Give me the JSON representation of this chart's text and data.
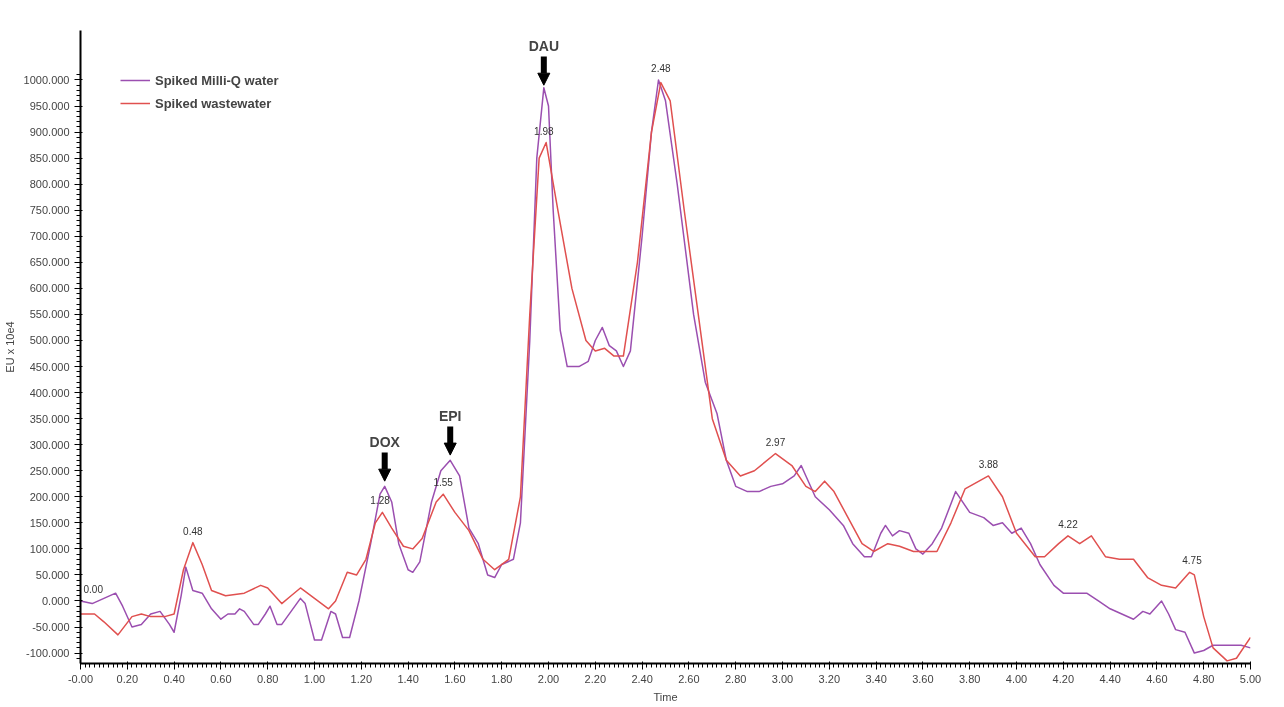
{
  "chart_data": {
    "type": "line",
    "xlabel": "Time",
    "ylabel": "EU x 10e4",
    "xlim": [
      0,
      5
    ],
    "ylim": [
      -120,
      1095
    ],
    "xticks": [
      {
        "value": 0,
        "label": "-0.00"
      },
      {
        "value": 0.2,
        "label": "0.20"
      },
      {
        "value": 0.4,
        "label": "0.40"
      },
      {
        "value": 0.6,
        "label": "0.60"
      },
      {
        "value": 0.8,
        "label": "0.80"
      },
      {
        "value": 1,
        "label": "1.00"
      },
      {
        "value": 1.2,
        "label": "1.20"
      },
      {
        "value": 1.4,
        "label": "1.40"
      },
      {
        "value": 1.6,
        "label": "1.60"
      },
      {
        "value": 1.8,
        "label": "1.80"
      },
      {
        "value": 2,
        "label": "2.00"
      },
      {
        "value": 2.2,
        "label": "2.20"
      },
      {
        "value": 2.4,
        "label": "2.40"
      },
      {
        "value": 2.6,
        "label": "2.60"
      },
      {
        "value": 2.8,
        "label": "2.80"
      },
      {
        "value": 3,
        "label": "3.00"
      },
      {
        "value": 3.2,
        "label": "3.20"
      },
      {
        "value": 3.4,
        "label": "3.40"
      },
      {
        "value": 3.6,
        "label": "3.60"
      },
      {
        "value": 3.8,
        "label": "3.80"
      },
      {
        "value": 4,
        "label": "4.00"
      },
      {
        "value": 4.2,
        "label": "4.20"
      },
      {
        "value": 4.4,
        "label": "4.40"
      },
      {
        "value": 4.6,
        "label": "4.60"
      },
      {
        "value": 4.8,
        "label": "4.80"
      },
      {
        "value": 5,
        "label": "5.00"
      }
    ],
    "yticks": [
      {
        "value": -100,
        "label": "-100.000"
      },
      {
        "value": -50,
        "label": "-50.000"
      },
      {
        "value": 0,
        "label": "0.000"
      },
      {
        "value": 50,
        "label": "50.000"
      },
      {
        "value": 100,
        "label": "100.000"
      },
      {
        "value": 150,
        "label": "150.000"
      },
      {
        "value": 200,
        "label": "200.000"
      },
      {
        "value": 250,
        "label": "250.000"
      },
      {
        "value": 300,
        "label": "300.000"
      },
      {
        "value": 350,
        "label": "350.000"
      },
      {
        "value": 400,
        "label": "400.000"
      },
      {
        "value": 450,
        "label": "450.000"
      },
      {
        "value": 500,
        "label": "500.000"
      },
      {
        "value": 550,
        "label": "550.000"
      },
      {
        "value": 600,
        "label": "600.000"
      },
      {
        "value": 650,
        "label": "650.000"
      },
      {
        "value": 700,
        "label": "700.000"
      },
      {
        "value": 750,
        "label": "750.000"
      },
      {
        "value": 800,
        "label": "800.000"
      },
      {
        "value": 850,
        "label": "850.000"
      },
      {
        "value": 900,
        "label": "900.000"
      },
      {
        "value": 950,
        "label": "950.000"
      },
      {
        "value": 1000,
        "label": "1000.000"
      }
    ],
    "legend": "top left",
    "grid": false,
    "line_style": "solid",
    "series": [
      {
        "name": "Spiked Milli-Q water",
        "color": "#9b4fb0",
        "x": [
          0,
          0.05,
          0.1,
          0.15,
          0.18,
          0.22,
          0.26,
          0.3,
          0.34,
          0.38,
          0.4,
          0.43,
          0.45,
          0.48,
          0.52,
          0.56,
          0.6,
          0.63,
          0.66,
          0.68,
          0.7,
          0.74,
          0.76,
          0.79,
          0.81,
          0.84,
          0.86,
          0.9,
          0.94,
          0.96,
          0.98,
          1.0,
          1.03,
          1.07,
          1.09,
          1.12,
          1.15,
          1.19,
          1.24,
          1.28,
          1.3,
          1.33,
          1.36,
          1.4,
          1.42,
          1.45,
          1.5,
          1.54,
          1.58,
          1.62,
          1.66,
          1.7,
          1.74,
          1.77,
          1.8,
          1.85,
          1.88,
          1.92,
          1.95,
          1.98,
          2.0,
          2.02,
          2.05,
          2.08,
          2.13,
          2.17,
          2.2,
          2.23,
          2.26,
          2.29,
          2.32,
          2.35,
          2.4,
          2.44,
          2.47,
          2.5,
          2.55,
          2.62,
          2.67,
          2.72,
          2.76,
          2.8,
          2.85,
          2.9,
          2.95,
          3.0,
          3.05,
          3.08,
          3.1,
          3.14,
          3.2,
          3.26,
          3.3,
          3.35,
          3.38,
          3.42,
          3.44,
          3.47,
          3.5,
          3.54,
          3.57,
          3.6,
          3.64,
          3.68,
          3.74,
          3.8,
          3.86,
          3.9,
          3.94,
          3.98,
          4.02,
          4.06,
          4.1,
          4.16,
          4.2,
          4.3,
          4.35,
          4.4,
          4.45,
          4.5,
          4.54,
          4.57,
          4.62,
          4.65,
          4.68,
          4.72,
          4.76,
          4.8,
          4.84,
          4.96,
          5.0
        ],
        "values": [
          0,
          -5,
          5,
          15,
          -10,
          -50,
          -45,
          -25,
          -20,
          -45,
          -60,
          10,
          65,
          20,
          15,
          -15,
          -35,
          -25,
          -25,
          -15,
          -20,
          -45,
          -45,
          -25,
          -10,
          -45,
          -45,
          -20,
          5,
          -5,
          -40,
          -75,
          -75,
          -20,
          -25,
          -70,
          -70,
          0,
          110,
          205,
          220,
          190,
          110,
          60,
          55,
          75,
          190,
          250,
          270,
          240,
          140,
          110,
          50,
          45,
          70,
          80,
          150,
          500,
          850,
          985,
          950,
          750,
          520,
          450,
          450,
          460,
          500,
          525,
          490,
          480,
          450,
          480,
          700,
          900,
          1000,
          960,
          800,
          550,
          420,
          360,
          270,
          220,
          210,
          210,
          220,
          225,
          240,
          260,
          240,
          200,
          175,
          145,
          110,
          85,
          85,
          130,
          145,
          125,
          135,
          130,
          100,
          90,
          110,
          140,
          210,
          170,
          160,
          145,
          150,
          130,
          140,
          110,
          70,
          30,
          15,
          15,
          0,
          -15,
          -25,
          -35,
          -20,
          -25,
          0,
          -25,
          -55,
          -60,
          -100,
          -95,
          -85,
          -85,
          -90
        ]
      },
      {
        "name": "Spiked wastewater",
        "color": "#e0504f",
        "x": [
          0,
          0.06,
          0.1,
          0.16,
          0.22,
          0.26,
          0.3,
          0.36,
          0.4,
          0.44,
          0.48,
          0.52,
          0.56,
          0.62,
          0.7,
          0.77,
          0.8,
          0.86,
          0.9,
          0.94,
          1.0,
          1.06,
          1.09,
          1.14,
          1.18,
          1.22,
          1.26,
          1.29,
          1.33,
          1.38,
          1.42,
          1.46,
          1.52,
          1.55,
          1.6,
          1.66,
          1.72,
          1.77,
          1.83,
          1.88,
          1.92,
          1.96,
          1.99,
          2.04,
          2.1,
          2.16,
          2.2,
          2.24,
          2.28,
          2.32,
          2.38,
          2.44,
          2.48,
          2.52,
          2.58,
          2.64,
          2.7,
          2.76,
          2.82,
          2.88,
          2.97,
          3.04,
          3.1,
          3.14,
          3.18,
          3.22,
          3.28,
          3.34,
          3.39,
          3.45,
          3.5,
          3.56,
          3.66,
          3.72,
          3.78,
          3.88,
          3.94,
          4.0,
          4.08,
          4.12,
          4.18,
          4.22,
          4.27,
          4.32,
          4.38,
          4.44,
          4.5,
          4.56,
          4.62,
          4.68,
          4.74,
          4.76,
          4.8,
          4.84,
          4.9,
          4.94,
          5.0
        ],
        "values": [
          -25,
          -25,
          -40,
          -65,
          -30,
          -25,
          -30,
          -30,
          -25,
          60,
          112,
          70,
          20,
          10,
          15,
          30,
          25,
          -5,
          10,
          25,
          5,
          -15,
          0,
          55,
          50,
          80,
          150,
          170,
          140,
          105,
          100,
          120,
          190,
          205,
          170,
          135,
          80,
          60,
          80,
          200,
          550,
          850,
          880,
          750,
          600,
          500,
          480,
          485,
          470,
          470,
          650,
          900,
          995,
          960,
          750,
          550,
          350,
          270,
          240,
          250,
          283,
          260,
          220,
          210,
          230,
          210,
          160,
          110,
          95,
          110,
          105,
          95,
          95,
          150,
          215,
          240,
          200,
          130,
          85,
          85,
          110,
          125,
          110,
          125,
          85,
          80,
          80,
          45,
          30,
          25,
          55,
          50,
          -30,
          -90,
          -115,
          -110,
          -70
        ]
      }
    ],
    "annotations": [
      {
        "text": "0.00",
        "x": 0,
        "y": 0
      },
      {
        "text": "0.48",
        "x": 0.48,
        "y": 112
      },
      {
        "text": "1.28",
        "x": 1.28,
        "y": 170
      },
      {
        "text": "1.55",
        "x": 1.55,
        "y": 205
      },
      {
        "text": "1.98",
        "x": 1.98,
        "y": 880
      },
      {
        "text": "2.48",
        "x": 2.48,
        "y": 1000
      },
      {
        "text": "2.97",
        "x": 2.97,
        "y": 283
      },
      {
        "text": "3.88",
        "x": 3.88,
        "y": 240
      },
      {
        "text": "4.22",
        "x": 4.22,
        "y": 125
      },
      {
        "text": "4.75",
        "x": 4.75,
        "y": 55
      },
      {
        "text": "DOX",
        "x": 1.3,
        "y": 230
      },
      {
        "text": "EPI",
        "x": 1.58,
        "y": 280
      },
      {
        "text": "DAU",
        "x": 1.98,
        "y": 990
      }
    ]
  }
}
